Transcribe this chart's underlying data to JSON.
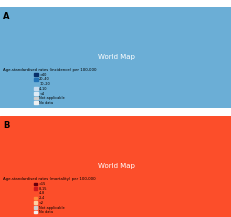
{
  "title_top": "A",
  "title_bottom": "B",
  "legend_top_title": "Age-standardised rates (incidence) per 100,000",
  "legend_bottom_title": "Age-standardised rates (mortality) per 100,000",
  "legend_top_items": [
    {
      "label": ">40",
      "color": "#08306b"
    },
    {
      "label": "20–40",
      "color": "#2171b5"
    },
    {
      "label": "10–20",
      "color": "#6baed6"
    },
    {
      "label": "4–10",
      "color": "#c6dbef"
    },
    {
      "label": "<4",
      "color": "#deebf7"
    },
    {
      "label": "Not applicable",
      "color": "#d0d0d0"
    },
    {
      "label": "No data",
      "color": "#f0f0f0"
    }
  ],
  "legend_bottom_items": [
    {
      "label": ">15",
      "color": "#67000d"
    },
    {
      "label": "8–15",
      "color": "#cb181d"
    },
    {
      "label": "4–8",
      "color": "#fc4e2a"
    },
    {
      "label": "2–4",
      "color": "#fd8d3c"
    },
    {
      "label": "<2",
      "color": "#fdd0a2"
    },
    {
      "label": "Not applicable",
      "color": "#d0d0d0"
    },
    {
      "label": "No data",
      "color": "#f0f0f0"
    }
  ],
  "bg_color": "#ffffff",
  "fig_width": 2.32,
  "fig_height": 2.17,
  "dpi": 100
}
